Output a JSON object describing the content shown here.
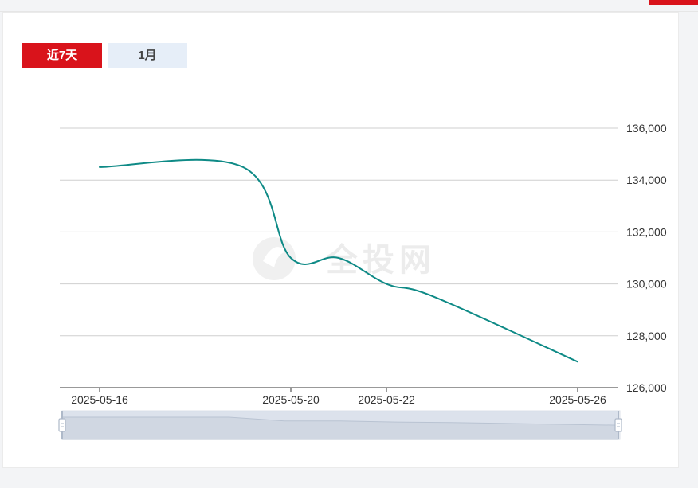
{
  "header": {
    "text": ""
  },
  "tabs": [
    {
      "label": "近7天",
      "active": true
    },
    {
      "label": "1月",
      "active": false
    }
  ],
  "watermark": "全投网",
  "colors": {
    "line": "#0e8a86",
    "accent": "#d9131b",
    "grid": "#cfcfcf",
    "axis_text": "#333333"
  },
  "chart_data": {
    "type": "line",
    "title": "",
    "xlabel": "",
    "ylabel": "",
    "x_ticks": [
      "2025-05-16",
      "2025-05-20",
      "2025-05-22",
      "2025-05-26"
    ],
    "y_ticks": [
      "136,000",
      "134,000",
      "132,000",
      "130,000",
      "128,000",
      "126,000"
    ],
    "ylim": [
      126000,
      136000
    ],
    "y_axis_position": "right",
    "grid": true,
    "series": [
      {
        "points": [
          {
            "x": "2025-05-16",
            "y": 134500
          },
          {
            "x": "2025-05-19",
            "y": 134500
          },
          {
            "x": "2025-05-20",
            "y": 131000
          },
          {
            "x": "2025-05-21",
            "y": 131000
          },
          {
            "x": "2025-05-22",
            "y": 130000
          },
          {
            "x": "2025-05-23",
            "y": 129500
          },
          {
            "x": "2025-05-26",
            "y": 127000
          }
        ]
      }
    ],
    "zoom_slider": {
      "start_fraction": 0,
      "end_fraction": 1
    }
  }
}
